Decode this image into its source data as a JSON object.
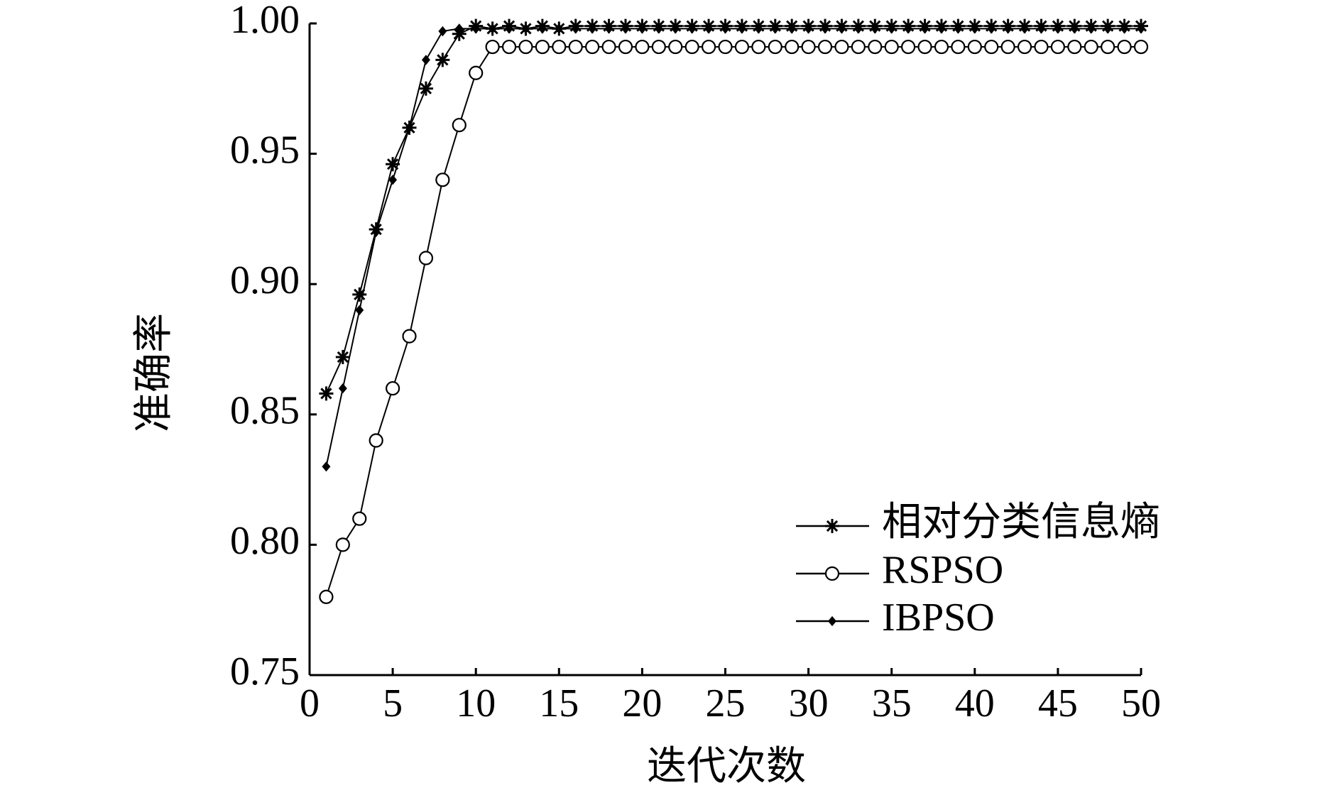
{
  "chart_data": {
    "type": "line",
    "x_label": "迭代次数",
    "y_label": "准确率",
    "x": [
      1,
      2,
      3,
      4,
      5,
      6,
      7,
      8,
      9,
      10,
      11,
      12,
      13,
      14,
      15,
      16,
      17,
      18,
      19,
      20,
      21,
      22,
      23,
      24,
      25,
      26,
      27,
      28,
      29,
      30,
      31,
      32,
      33,
      34,
      35,
      36,
      37,
      38,
      39,
      40,
      41,
      42,
      43,
      44,
      45,
      46,
      47,
      48,
      49,
      50
    ],
    "series": [
      {
        "name": "相对分类信息熵",
        "color": "#000000",
        "marker": "star",
        "values": [
          0.858,
          0.872,
          0.896,
          0.921,
          0.946,
          0.96,
          0.975,
          0.986,
          0.996,
          0.999,
          0.998,
          0.999,
          0.998,
          0.999,
          0.998,
          0.999,
          0.999,
          0.999,
          0.999,
          0.999,
          0.999,
          0.999,
          0.999,
          0.999,
          0.999,
          0.999,
          0.999,
          0.999,
          0.999,
          0.999,
          0.999,
          0.999,
          0.999,
          0.999,
          0.999,
          0.999,
          0.999,
          0.999,
          0.999,
          0.999,
          0.999,
          0.999,
          0.999,
          0.999,
          0.999,
          0.999,
          0.999,
          0.999,
          0.999,
          0.999
        ]
      },
      {
        "name": "RSPSO",
        "color": "#000000",
        "marker": "circle",
        "values": [
          0.78,
          0.8,
          0.81,
          0.84,
          0.86,
          0.88,
          0.91,
          0.94,
          0.961,
          0.981,
          0.991,
          0.991,
          0.991,
          0.991,
          0.991,
          0.991,
          0.991,
          0.991,
          0.991,
          0.991,
          0.991,
          0.991,
          0.991,
          0.991,
          0.991,
          0.991,
          0.991,
          0.991,
          0.991,
          0.991,
          0.991,
          0.991,
          0.991,
          0.991,
          0.991,
          0.991,
          0.991,
          0.991,
          0.991,
          0.991,
          0.991,
          0.991,
          0.991,
          0.991,
          0.991,
          0.991,
          0.991,
          0.991,
          0.991,
          0.991
        ]
      },
      {
        "name": "IBPSO",
        "color": "#000000",
        "marker": "diamond",
        "values": [
          0.83,
          0.86,
          0.89,
          0.92,
          0.94,
          0.96,
          0.986,
          0.997,
          0.998,
          0.998,
          0.998,
          0.998,
          0.998,
          0.998,
          0.998,
          0.998,
          0.998,
          0.998,
          0.998,
          0.998,
          0.998,
          0.998,
          0.998,
          0.998,
          0.998,
          0.998,
          0.998,
          0.998,
          0.998,
          0.998,
          0.998,
          0.998,
          0.998,
          0.998,
          0.998,
          0.998,
          0.998,
          0.998,
          0.998,
          0.998,
          0.998,
          0.998,
          0.998,
          0.998,
          0.998,
          0.998,
          0.998,
          0.998,
          0.998,
          0.998
        ]
      }
    ],
    "xlim": [
      0,
      50
    ],
    "xticks": [
      0,
      5,
      10,
      15,
      20,
      25,
      30,
      35,
      40,
      45,
      50
    ],
    "ylim": [
      0.75,
      1.0
    ],
    "yticks": [
      0.75,
      {
        "value": 0.8,
        "label": "0.80"
      },
      0.85,
      {
        "value": 0.9,
        "label": "0.90"
      },
      0.95,
      {
        "value": 1.0,
        "label": "1.00"
      }
    ],
    "grid": false,
    "legend": "lower right"
  }
}
